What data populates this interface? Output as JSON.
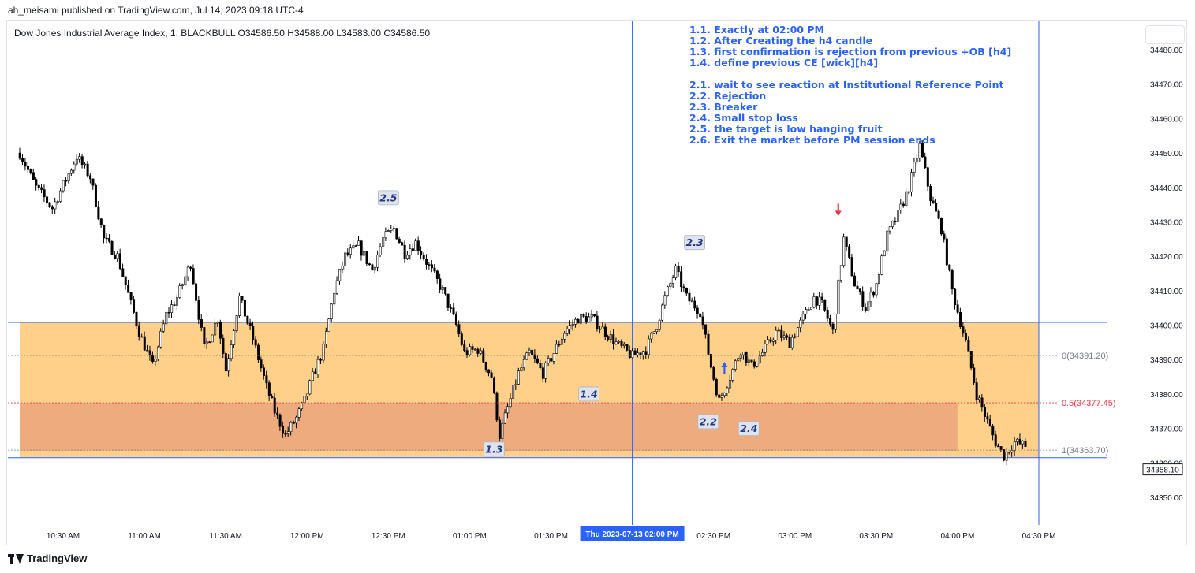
{
  "header": "ah_meisami published on TradingView.com, Jul 14, 2023 09:18 UTC-4",
  "ohlc_line": "Dow Jones Industrial Average Index, 1, BLACKBULL  O34586.50  H34588.00  L34583.00  C34586.50",
  "notes": [
    "1.1. Exactly at 02:00 PM",
    "1.2. After Creating the h4 candle",
    "1.3. first confirmation is rejection from previous +OB [h4]",
    "1.4. define previous CE [wick][h4]",
    "",
    "2.1. wait to see reaction at Institutional Reference Point",
    "2.2. Rejection",
    "2.3. Breaker",
    "2.4. Small stop loss",
    "2.5. the target is low hanging fruit",
    "2.6. Exit the market before PM session ends"
  ],
  "footer": "TradingView",
  "colors": {
    "up": "#ffffff",
    "down": "#000000",
    "wick": "#000000",
    "zone": "#ffcc80",
    "zone_low": "#e8a07a",
    "blue": "#2962ff",
    "red": "#f23645"
  },
  "chart_data": {
    "type": "candlestick",
    "ylim": [
      34343,
      34484
    ],
    "y_ticks": [
      34350,
      34360,
      34370,
      34380,
      34390,
      34400,
      34410,
      34420,
      34430,
      34440,
      34450,
      34460,
      34470,
      34480
    ],
    "y_tick_labels": [
      "34350.00",
      "34360.00",
      "34370.00",
      "34380.00",
      "34390.00",
      "34400.00",
      "34410.00",
      "34420.00",
      "34430.00",
      "34440.00",
      "34450.00",
      "34460.00",
      "34470.00",
      "34480.00"
    ],
    "x_tick_labels": [
      "10:30 AM",
      "11:00 AM",
      "11:30 AM",
      "12:00 PM",
      "12:30 PM",
      "01:00 PM",
      "01:30 PM",
      "02:00 PM",
      "02:30 PM",
      "03:00 PM",
      "03:30 PM",
      "04:00 PM",
      "04:30 PM"
    ],
    "x_highlight": {
      "label": "Thu 2023-07-13   02:00 PM",
      "time": "2023-07-13 14:00"
    },
    "last_price": "34358.10",
    "time_start": "10:14",
    "time_end": "16:30",
    "price_path": [
      [
        "10:14",
        34450
      ],
      [
        "10:20",
        34440
      ],
      [
        "10:26",
        34434
      ],
      [
        "10:35",
        34449
      ],
      [
        "10:40",
        34443
      ],
      [
        "10:45",
        34425
      ],
      [
        "10:50",
        34420
      ],
      [
        "10:58",
        34398
      ],
      [
        "11:03",
        34388
      ],
      [
        "11:08",
        34403
      ],
      [
        "11:12",
        34408
      ],
      [
        "11:17",
        34418
      ],
      [
        "11:22",
        34393
      ],
      [
        "11:27",
        34402
      ],
      [
        "11:30",
        34387
      ],
      [
        "11:35",
        34408
      ],
      [
        "11:40",
        34396
      ],
      [
        "11:45",
        34382
      ],
      [
        "11:48",
        34375
      ],
      [
        "11:52",
        34368
      ],
      [
        "11:56",
        34373
      ],
      [
        "11:59",
        34378
      ],
      [
        "12:02",
        34385
      ],
      [
        "12:06",
        34393
      ],
      [
        "12:10",
        34410
      ],
      [
        "12:14",
        34420
      ],
      [
        "12:19",
        34423
      ],
      [
        "12:24",
        34416
      ],
      [
        "12:28",
        34425
      ],
      [
        "12:32",
        34428
      ],
      [
        "12:36",
        34421
      ],
      [
        "12:40",
        34424
      ],
      [
        "12:45",
        34417
      ],
      [
        "12:50",
        34410
      ],
      [
        "12:55",
        34400
      ],
      [
        "12:58",
        34392
      ],
      [
        "13:03",
        34393
      ],
      [
        "13:08",
        34385
      ],
      [
        "13:11",
        34368
      ],
      [
        "13:14",
        34376
      ],
      [
        "13:18",
        34386
      ],
      [
        "13:22",
        34392
      ],
      [
        "13:27",
        34386
      ],
      [
        "13:31",
        34392
      ],
      [
        "13:35",
        34398
      ],
      [
        "13:40",
        34402
      ],
      [
        "13:45",
        34402
      ],
      [
        "13:50",
        34398
      ],
      [
        "13:55",
        34394
      ],
      [
        "14:00",
        34391
      ],
      [
        "14:05",
        34393
      ],
      [
        "14:09",
        34400
      ],
      [
        "14:12",
        34408
      ],
      [
        "14:16",
        34416
      ],
      [
        "14:20",
        34408
      ],
      [
        "14:25",
        34404
      ],
      [
        "14:29",
        34388
      ],
      [
        "14:32",
        34378
      ],
      [
        "14:36",
        34385
      ],
      [
        "14:40",
        34393
      ],
      [
        "14:44",
        34388
      ],
      [
        "14:48",
        34392
      ],
      [
        "14:53",
        34398
      ],
      [
        "14:58",
        34395
      ],
      [
        "15:03",
        34402
      ],
      [
        "15:07",
        34408
      ],
      [
        "15:10",
        34406
      ],
      [
        "15:14",
        34398
      ],
      [
        "15:18",
        34425
      ],
      [
        "15:22",
        34412
      ],
      [
        "15:26",
        34405
      ],
      [
        "15:30",
        34412
      ],
      [
        "15:34",
        34426
      ],
      [
        "15:38",
        34432
      ],
      [
        "15:42",
        34440
      ],
      [
        "15:46",
        34452
      ],
      [
        "15:50",
        34437
      ],
      [
        "15:54",
        34428
      ],
      [
        "15:58",
        34410
      ],
      [
        "16:03",
        34395
      ],
      [
        "16:07",
        34380
      ],
      [
        "16:11",
        34372
      ],
      [
        "16:14",
        34366
      ],
      [
        "16:17",
        34362
      ],
      [
        "16:21",
        34366
      ],
      [
        "16:25",
        34365
      ]
    ],
    "zones": [
      {
        "from": "10:14",
        "to": "16:30",
        "low": 34361.5,
        "high": 34400.8,
        "color": "zone"
      },
      {
        "from": "10:14",
        "to": "16:00",
        "low": 34363.5,
        "high": 34377.45,
        "color": "zone_low"
      }
    ],
    "fib_lines": [
      {
        "label": "0(34391.20)",
        "value": 34391.2,
        "color": "#787b86"
      },
      {
        "label": "0.5(34377.45)",
        "value": 34377.45,
        "color": "#f23645"
      },
      {
        "label": "1(34363.70)",
        "value": 34363.7,
        "color": "#787b86"
      }
    ],
    "vertical_lines": [
      "14:00",
      "16:30"
    ],
    "annotations": [
      {
        "text": "2.5",
        "time": "12:30",
        "price": 34437
      },
      {
        "text": "2.3",
        "time": "14:23",
        "price": 34424
      },
      {
        "text": "1.4",
        "time": "13:44",
        "price": 34380
      },
      {
        "text": "2.2",
        "time": "14:28",
        "price": 34372
      },
      {
        "text": "2.4",
        "time": "14:43",
        "price": 34370
      },
      {
        "text": "1.3",
        "time": "13:09",
        "price": 34364
      }
    ],
    "arrows": [
      {
        "dir": "up",
        "time": "14:34",
        "price": 34388,
        "color": "blue"
      },
      {
        "dir": "down",
        "time": "15:16",
        "price": 34433,
        "color": "red"
      }
    ]
  }
}
